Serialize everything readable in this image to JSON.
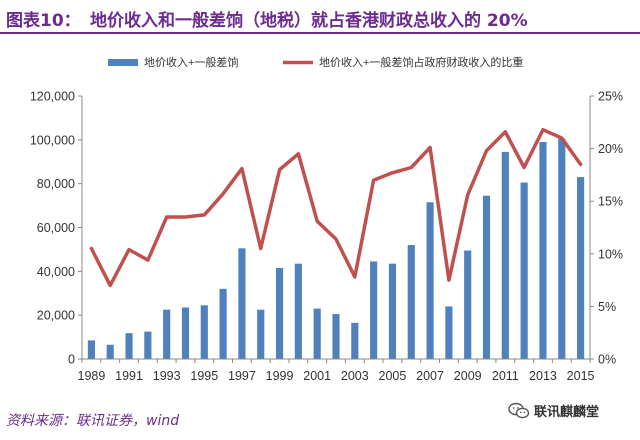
{
  "title": {
    "label": "图表10：",
    "text": "地价收入和一般差饷（地税）就占香港财政总收入的 20%"
  },
  "source": "资料来源：联讯证券，wind",
  "watermark": {
    "icon": "wechat-icon",
    "text": "联讯麒麟堂"
  },
  "colors": {
    "bar": "#4F81BD",
    "line": "#C0504D",
    "title": "#6B2C8E",
    "axis": "#888888",
    "text": "#333333"
  },
  "chart_data": {
    "type": "bar+line",
    "title": "地价收入和一般差饷（地税）就占香港财政总收入的 20%",
    "x": [
      1989,
      1990,
      1991,
      1992,
      1993,
      1994,
      1995,
      1996,
      1997,
      1998,
      1999,
      2000,
      2001,
      2002,
      2003,
      2004,
      2005,
      2006,
      2007,
      2008,
      2009,
      2010,
      2011,
      2012,
      2013,
      2014,
      2015
    ],
    "x_tick_labels": [
      "1989",
      "1991",
      "1993",
      "1995",
      "1997",
      "1999",
      "2001",
      "2003",
      "2005",
      "2007",
      "2009",
      "2011",
      "2013",
      "2015"
    ],
    "series": [
      {
        "name": "地价收入+一般差饷",
        "type": "bar",
        "axis": "left",
        "values": [
          8500,
          6500,
          11800,
          12500,
          22500,
          23500,
          24500,
          32000,
          50500,
          22500,
          41500,
          43500,
          23000,
          20500,
          16500,
          44500,
          43500,
          52000,
          71500,
          24000,
          49500,
          74500,
          94500,
          80500,
          99000,
          100500,
          83000
        ]
      },
      {
        "name": "地价收入+一般差饷占政府财政收入的比重",
        "type": "line",
        "axis": "right",
        "values": [
          10.5,
          7.0,
          10.4,
          9.4,
          13.5,
          13.5,
          13.7,
          15.7,
          18.1,
          10.5,
          18.0,
          19.5,
          13.1,
          11.4,
          7.8,
          17.0,
          17.7,
          18.2,
          20.1,
          7.5,
          15.6,
          19.8,
          21.6,
          18.2,
          21.8,
          21.0,
          18.5
        ]
      }
    ],
    "y_left": {
      "ylim": [
        0,
        120000
      ],
      "ticks": [
        0,
        20000,
        40000,
        60000,
        80000,
        100000,
        120000
      ],
      "tick_labels": [
        "0",
        "20,000",
        "40,000",
        "60,000",
        "80,000",
        "100,000",
        "120,000"
      ]
    },
    "y_right": {
      "ylim": [
        0,
        25
      ],
      "ticks": [
        0,
        5,
        10,
        15,
        20,
        25
      ],
      "tick_labels": [
        "0%",
        "5%",
        "10%",
        "15%",
        "20%",
        "25%"
      ]
    },
    "legend": "top",
    "grid": false
  }
}
